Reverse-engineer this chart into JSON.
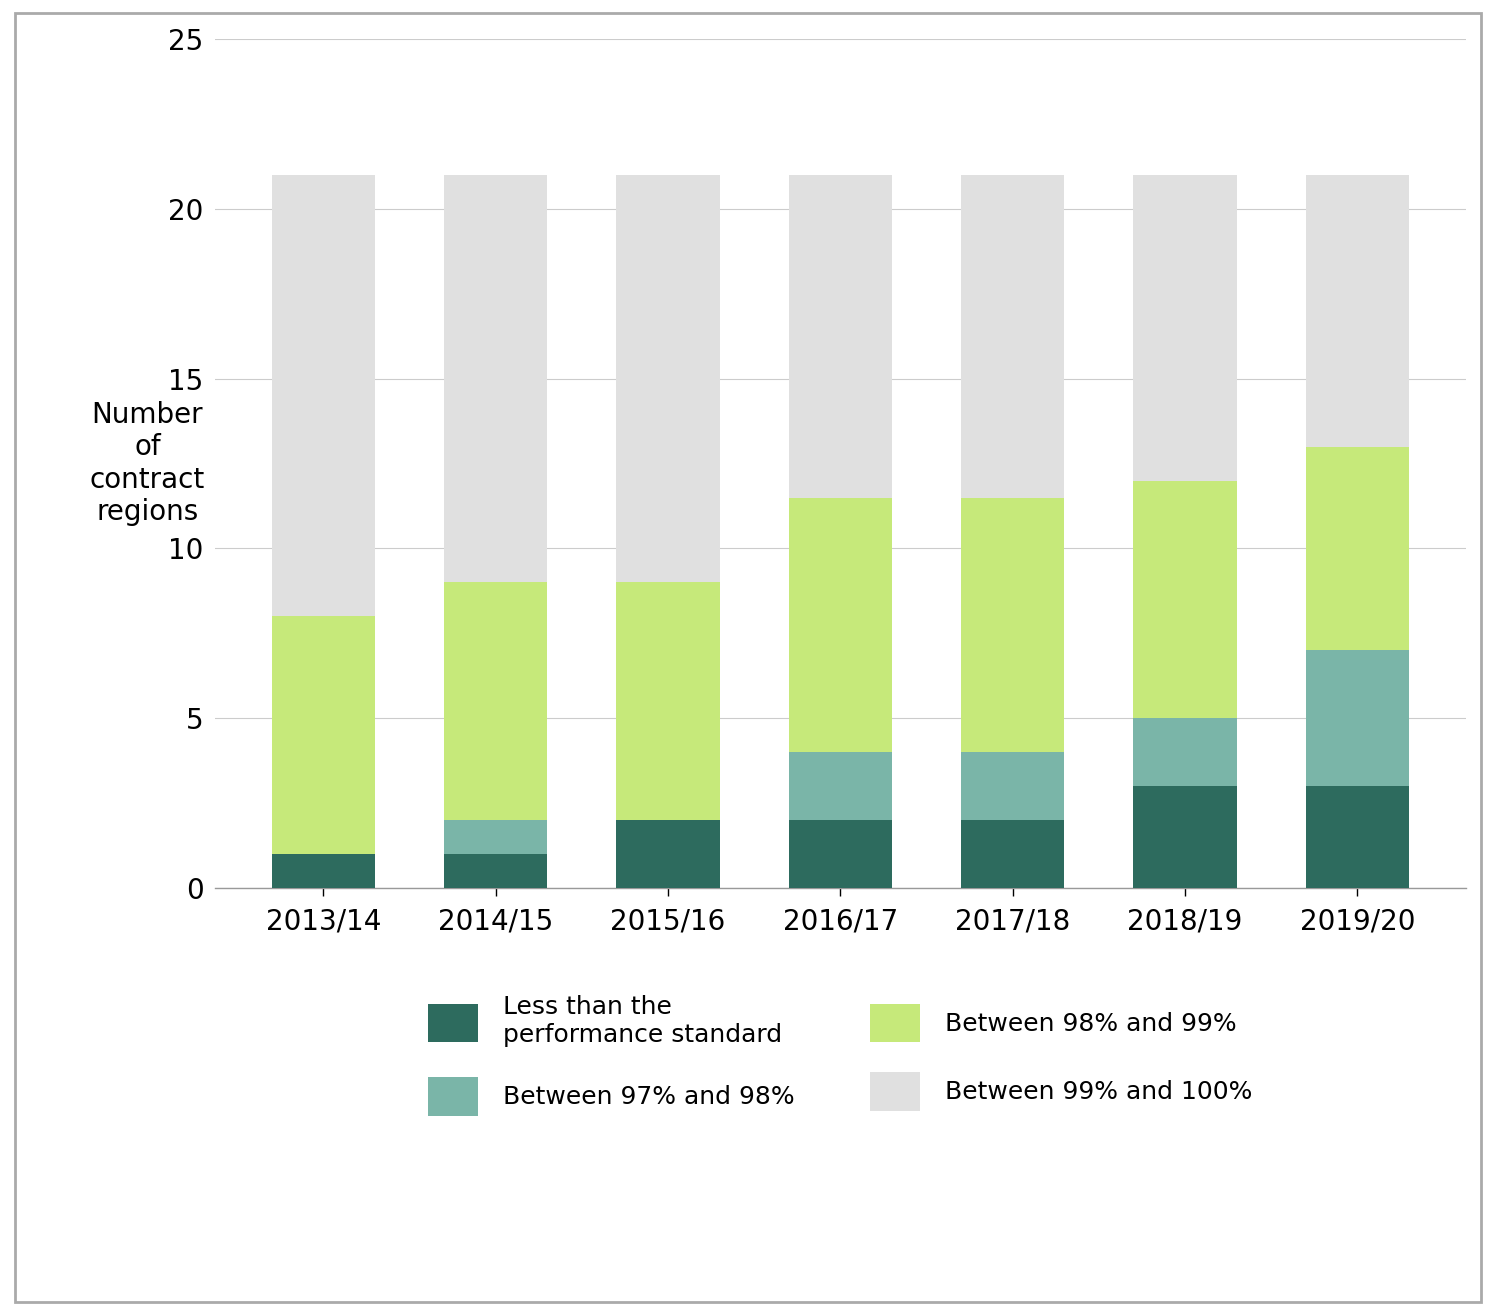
{
  "categories": [
    "2013/14",
    "2014/15",
    "2015/16",
    "2016/17",
    "2017/18",
    "2018/19",
    "2019/20"
  ],
  "less_than_standard": [
    1,
    1,
    2,
    2,
    2,
    3,
    3
  ],
  "between_97_98": [
    0,
    1,
    0,
    2,
    2,
    2,
    4
  ],
  "between_98_99": [
    7,
    7,
    7,
    7.5,
    7.5,
    7,
    6
  ],
  "between_99_100": [
    13,
    12,
    12,
    9.5,
    9.5,
    9,
    8
  ],
  "color_less_than": "#2d6b5e",
  "color_97_98": "#7ab5a8",
  "color_98_99": "#c6e97a",
  "color_99_100": "#e0e0e0",
  "ylabel": "Number\nof\ncontract\nregions",
  "ylim": [
    0,
    25
  ],
  "yticks": [
    0,
    5,
    10,
    15,
    20,
    25
  ],
  "legend_labels_left": [
    "Less than the\nperformance standard",
    "Between 98% and 99%"
  ],
  "legend_labels_right": [
    "Between 97% and 98%",
    "Between 99% and 100%"
  ],
  "bar_width": 0.6
}
